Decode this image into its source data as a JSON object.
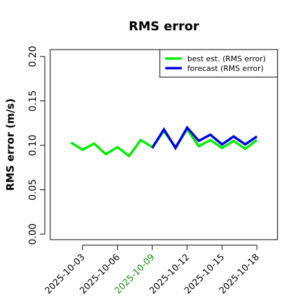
{
  "chart_data": {
    "type": "line",
    "title": "RMS error",
    "y_label": "RMS error (m/s)",
    "x": [
      "2025-10-02",
      "2025-10-03",
      "2025-10-04",
      "2025-10-05",
      "2025-10-06",
      "2025-10-07",
      "2025-10-08",
      "2025-10-09",
      "2025-10-10",
      "2025-10-11",
      "2025-10-12",
      "2025-10-13",
      "2025-10-14",
      "2025-10-15",
      "2025-10-16",
      "2025-10-17",
      "2025-10-18"
    ],
    "series": [
      {
        "name": "best est. (RMS error)",
        "color": "#00ee00",
        "values": [
          0.103,
          0.095,
          0.102,
          0.09,
          0.098,
          0.088,
          0.106,
          0.098,
          0.116,
          0.098,
          0.118,
          0.099,
          0.106,
          0.097,
          0.105,
          0.096,
          0.106
        ]
      },
      {
        "name": "forecast (RMS error)",
        "color": "#0000ee",
        "values": [
          null,
          null,
          null,
          null,
          null,
          null,
          null,
          0.097,
          0.118,
          0.097,
          0.12,
          0.105,
          0.112,
          0.101,
          0.11,
          0.101,
          0.11
        ]
      }
    ],
    "xlim": [
      "2025-09-30T05:20Z",
      "2025-10-19T18:40Z"
    ],
    "xticks": [
      "2025-10-03",
      "2025-10-06",
      "2025-10-09",
      "2025-10-12",
      "2025-10-15",
      "2025-10-18"
    ],
    "xtick_colors": [
      "#000000",
      "#000000",
      "#228b22",
      "#000000",
      "#000000",
      "#000000"
    ],
    "ylim": [
      -0.0062,
      0.2078
    ],
    "yticks": [
      {
        "value": 0,
        "label": "0.00"
      },
      {
        "value": 0.05,
        "label": "0.05"
      },
      {
        "value": 0.1,
        "label": "0.10"
      },
      {
        "value": 0.15,
        "label": "0.15"
      },
      {
        "value": 0.2,
        "label": "0.20"
      }
    ],
    "legend": "top-right"
  }
}
